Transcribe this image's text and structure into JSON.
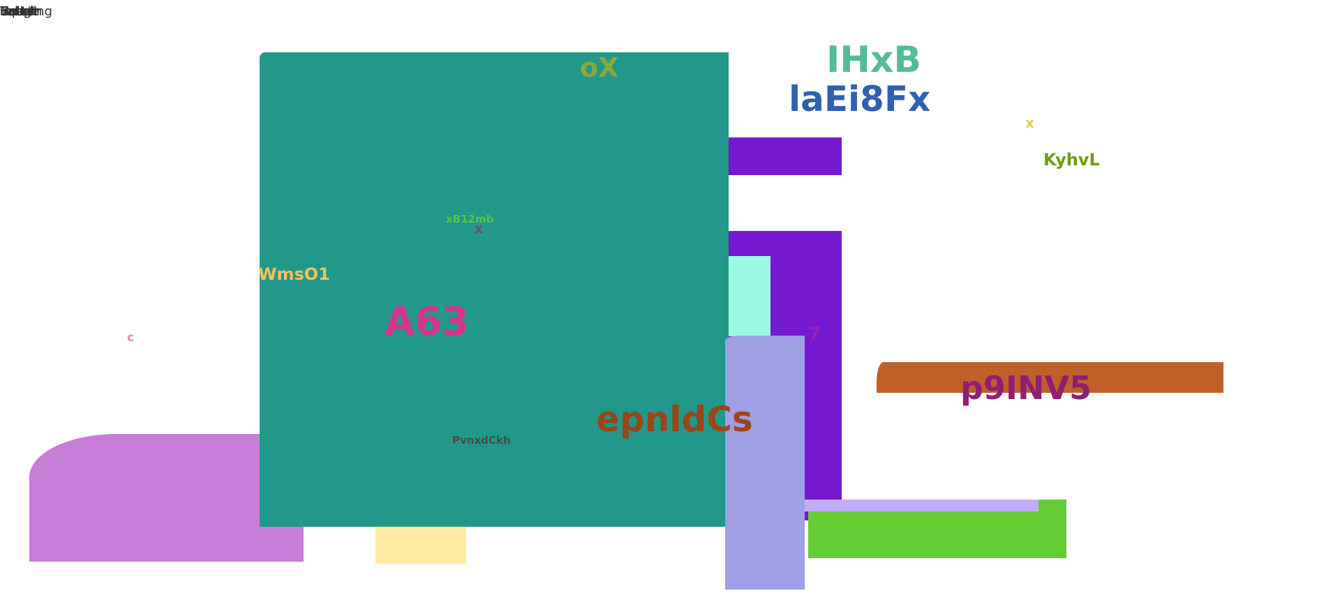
{
  "overlap_labels": [
    "Image",
    "Script",
    "Heading",
    "Input",
    "Select",
    "Button",
    "Cell",
    "Label",
    "Text"
  ],
  "labels": {
    "ox": "oX",
    "ihxb": "IHxB",
    "laei8fx": "laEi8Fx",
    "x_yellow": "x",
    "kyhvl": "KyhvL",
    "xb12mb": "xB12mb",
    "x_purple": "x",
    "wmso1": "WmsO1",
    "c_pink": "c",
    "a63": "A63",
    "seven": "7",
    "p9inv5": "p9INV5",
    "epnldcs": "epnldCs",
    "pvnxdckh": "PvnxdCkh"
  },
  "colors": {
    "teal": "#21988a",
    "violet": "#7419d0",
    "mint": "#9cf8e0",
    "periwinkle": "#a09ee4",
    "orange": "#c06029",
    "lime": "#66cc33",
    "lavender": "#c1aef7",
    "orchid": "#c77dd8",
    "pale_yellow": "#ffe9a3"
  }
}
